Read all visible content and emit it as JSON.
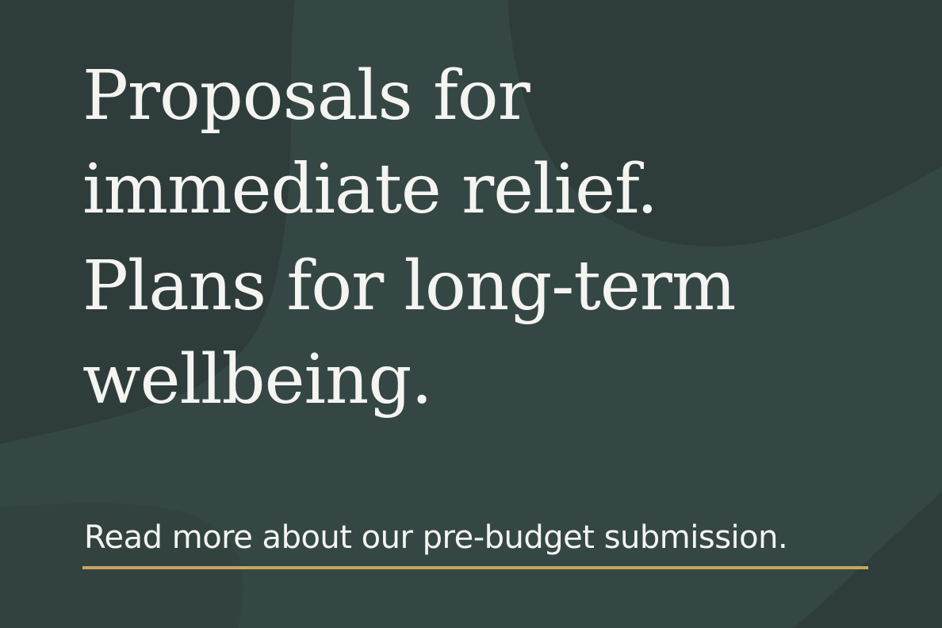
{
  "headline": {
    "line1": "Proposals for",
    "line2": "immediate relief.",
    "line3": "Plans for long-term",
    "line4": "wellbeing."
  },
  "cta": {
    "label": "Read more about our pre-budget submission."
  },
  "colors": {
    "background": "#2e3d3b",
    "text": "#f4f4f1",
    "accent_underline": "#c8a35e"
  }
}
